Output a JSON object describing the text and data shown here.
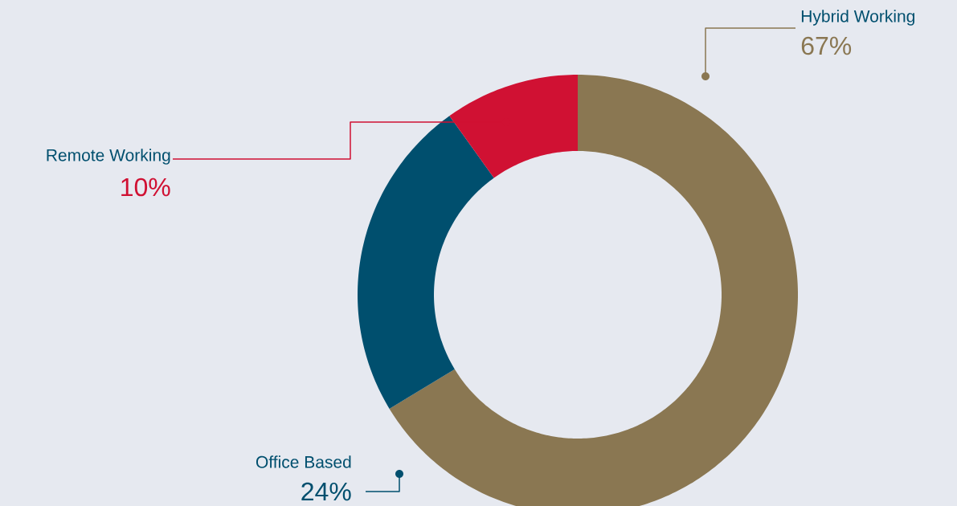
{
  "chart_data": {
    "type": "donut",
    "categories": [
      "Hybrid Working",
      "Office Based",
      "Remote Working"
    ],
    "values": [
      67,
      24,
      10
    ],
    "colors": [
      "#8a7752",
      "#004f6e",
      "#d01133"
    ],
    "value_labels": [
      "67%",
      "24%",
      "10%"
    ]
  }
}
